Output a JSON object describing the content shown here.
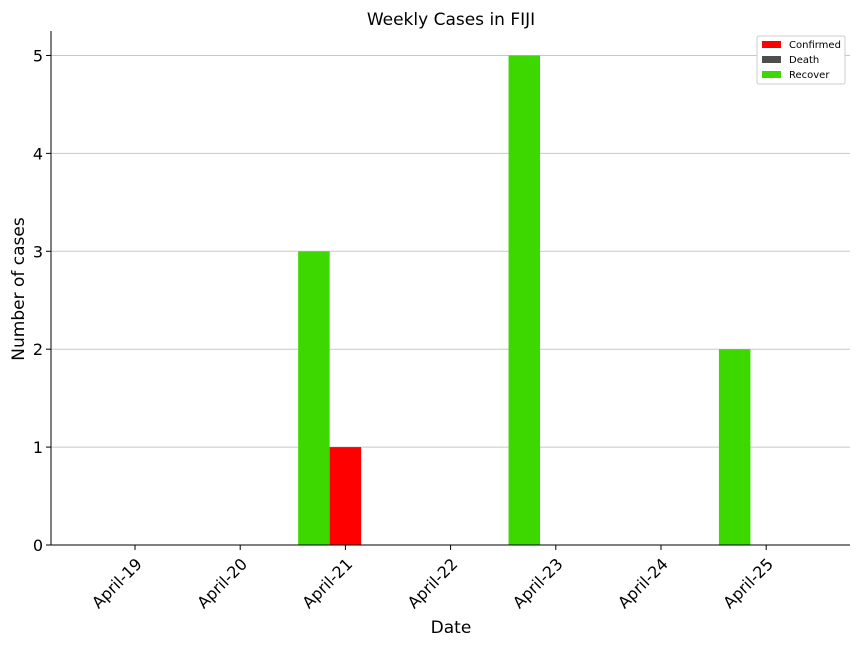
{
  "chart_data": {
    "type": "bar",
    "title": "Weekly Cases in FIJI",
    "xlabel": "Date",
    "ylabel": "Number of cases",
    "categories": [
      "April-19",
      "April-20",
      "April-21",
      "April-22",
      "April-23",
      "April-24",
      "April-25"
    ],
    "series": [
      {
        "name": "Confirmed",
        "color": "#ff0000",
        "values": [
          0,
          0,
          1,
          0,
          0,
          0,
          0
        ]
      },
      {
        "name": "Death",
        "color": "#4d4d4d",
        "values": [
          0,
          0,
          0,
          0,
          0,
          0,
          0
        ]
      },
      {
        "name": "Recover",
        "color": "#3dd800",
        "values": [
          0,
          0,
          3,
          0,
          5,
          0,
          2
        ]
      }
    ],
    "ylim": [
      0,
      5.25
    ],
    "yticks": [
      0,
      1,
      2,
      3,
      4,
      5
    ],
    "grid": "horizontal",
    "legend_position": "top-right"
  }
}
